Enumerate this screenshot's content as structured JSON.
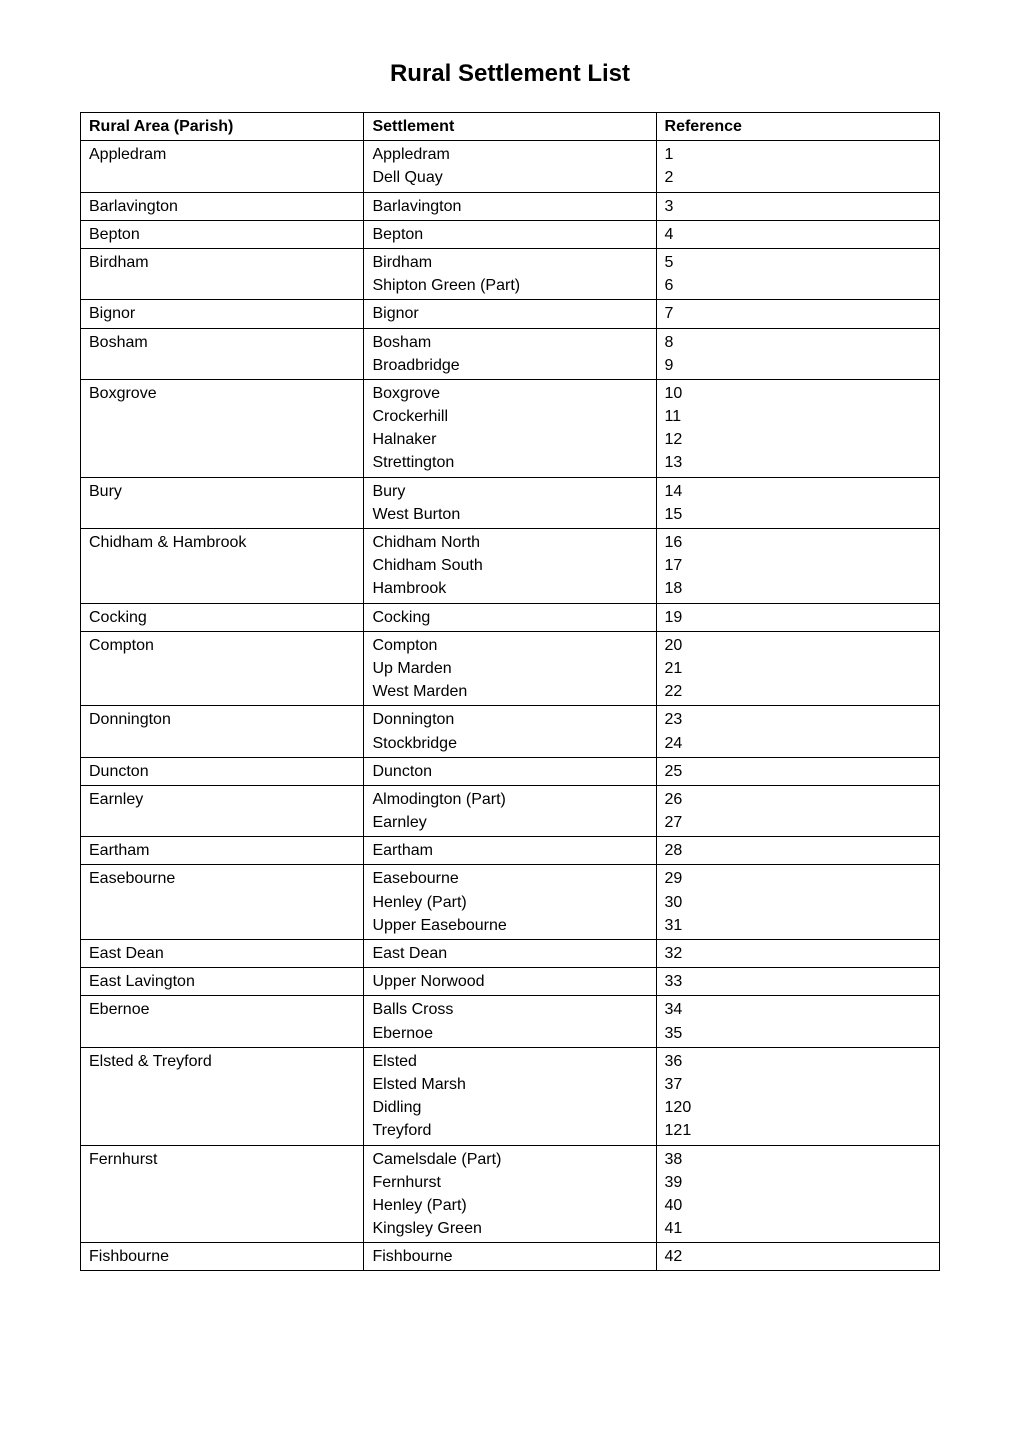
{
  "title": "Rural Settlement List",
  "headers": [
    "Rural Area (Parish)",
    "Settlement",
    "Reference"
  ],
  "groups": [
    {
      "parish": "Appledram",
      "settlements": [
        {
          "name": "Appledram",
          "ref": "1"
        },
        {
          "name": "Dell Quay",
          "ref": "2"
        }
      ]
    },
    {
      "parish": "Barlavington",
      "settlements": [
        {
          "name": "Barlavington",
          "ref": "3"
        }
      ]
    },
    {
      "parish": "Bepton",
      "settlements": [
        {
          "name": "Bepton",
          "ref": "4"
        }
      ]
    },
    {
      "parish": "Birdham",
      "settlements": [
        {
          "name": "Birdham",
          "ref": "5"
        },
        {
          "name": "Shipton Green (Part)",
          "ref": "6"
        }
      ]
    },
    {
      "parish": "Bignor",
      "settlements": [
        {
          "name": "Bignor",
          "ref": "7"
        }
      ]
    },
    {
      "parish": "Bosham",
      "settlements": [
        {
          "name": "Bosham",
          "ref": "8"
        },
        {
          "name": "Broadbridge",
          "ref": "9"
        }
      ]
    },
    {
      "parish": "Boxgrove",
      "settlements": [
        {
          "name": "Boxgrove",
          "ref": "10"
        },
        {
          "name": "Crockerhill",
          "ref": "11"
        },
        {
          "name": "Halnaker",
          "ref": "12"
        },
        {
          "name": "Strettington",
          "ref": "13"
        }
      ]
    },
    {
      "parish": "Bury",
      "settlements": [
        {
          "name": "Bury",
          "ref": "14"
        },
        {
          "name": "West Burton",
          "ref": "15"
        }
      ]
    },
    {
      "parish": "Chidham & Hambrook",
      "settlements": [
        {
          "name": "Chidham North",
          "ref": "16"
        },
        {
          "name": "Chidham South",
          "ref": "17"
        },
        {
          "name": "Hambrook",
          "ref": "18"
        }
      ]
    },
    {
      "parish": "Cocking",
      "settlements": [
        {
          "name": "Cocking",
          "ref": "19"
        }
      ]
    },
    {
      "parish": "Compton",
      "settlements": [
        {
          "name": "Compton",
          "ref": "20"
        },
        {
          "name": "Up Marden",
          "ref": "21"
        },
        {
          "name": "West Marden",
          "ref": "22"
        }
      ]
    },
    {
      "parish": "Donnington",
      "settlements": [
        {
          "name": "Donnington",
          "ref": "23"
        },
        {
          "name": "Stockbridge",
          "ref": "24"
        }
      ]
    },
    {
      "parish": "Duncton",
      "settlements": [
        {
          "name": "Duncton",
          "ref": "25"
        }
      ]
    },
    {
      "parish": "Earnley",
      "settlements": [
        {
          "name": "Almodington (Part)",
          "ref": "26"
        },
        {
          "name": "Earnley",
          "ref": "27"
        }
      ]
    },
    {
      "parish": "Eartham",
      "settlements": [
        {
          "name": "Eartham",
          "ref": "28"
        }
      ]
    },
    {
      "parish": "Easebourne",
      "settlements": [
        {
          "name": "Easebourne",
          "ref": "29"
        },
        {
          "name": "Henley (Part)",
          "ref": "30"
        },
        {
          "name": "Upper Easebourne",
          "ref": "31"
        }
      ]
    },
    {
      "parish": "East Dean",
      "settlements": [
        {
          "name": "East Dean",
          "ref": "32"
        }
      ]
    },
    {
      "parish": "East Lavington",
      "settlements": [
        {
          "name": "Upper Norwood",
          "ref": "33"
        }
      ]
    },
    {
      "parish": "Ebernoe",
      "settlements": [
        {
          "name": "Balls Cross",
          "ref": "34"
        },
        {
          "name": "Ebernoe",
          "ref": "35"
        }
      ]
    },
    {
      "parish": "Elsted & Treyford",
      "settlements": [
        {
          "name": "Elsted",
          "ref": "36"
        },
        {
          "name": "Elsted Marsh",
          "ref": "37"
        },
        {
          "name": "Didling",
          "ref": "120"
        },
        {
          "name": "Treyford",
          "ref": "121"
        }
      ]
    },
    {
      "parish": "Fernhurst",
      "settlements": [
        {
          "name": "Camelsdale (Part)",
          "ref": "38"
        },
        {
          "name": "Fernhurst",
          "ref": "39"
        },
        {
          "name": "Henley (Part)",
          "ref": "40"
        },
        {
          "name": "Kingsley Green",
          "ref": "41"
        }
      ]
    },
    {
      "parish": "Fishbourne",
      "settlements": [
        {
          "name": "Fishbourne",
          "ref": "42"
        }
      ]
    }
  ]
}
